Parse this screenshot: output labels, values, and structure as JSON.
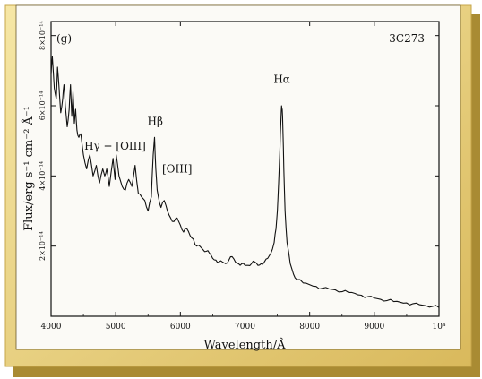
{
  "chart_data": {
    "type": "line",
    "panel_label": "(g)",
    "object_label": "3C273",
    "xlabel": "Wavelength/Å",
    "ylabel": "Flux/erg s⁻¹ cm⁻² Å⁻¹",
    "x_unit": "Å",
    "xlim": [
      4000,
      10000
    ],
    "ylim": [
      0,
      8.4e-14
    ],
    "x_ticks": [
      4000,
      5000,
      6000,
      7000,
      8000,
      9000,
      10000
    ],
    "x_tick_labels": [
      "4000",
      "5000",
      "6000",
      "7000",
      "8000",
      "9000",
      "10⁴"
    ],
    "y_ticks": [
      2e-14,
      4e-14,
      6e-14,
      8e-14
    ],
    "y_tick_labels": [
      "2×10⁻¹⁴",
      "4×10⁻¹⁴",
      "6×10⁻¹⁴",
      "8×10⁻¹⁴"
    ],
    "grid": false,
    "annotations": [
      {
        "text": "Hγ + [OIII]",
        "x": 4990,
        "y": 4.75e-14
      },
      {
        "text": "Hβ",
        "x": 5610,
        "y": 5.45e-14
      },
      {
        "text": "[OIII]",
        "x": 5950,
        "y": 4.1e-14
      },
      {
        "text": "Hα",
        "x": 7570,
        "y": 6.65e-14
      }
    ],
    "series": [
      {
        "x": [
          4000,
          4020,
          4050,
          4080,
          4100,
          4120,
          4150,
          4180,
          4200,
          4220,
          4250,
          4280,
          4300,
          4320,
          4340,
          4360,
          4380,
          4400,
          4430,
          4460,
          4500,
          4550,
          4600,
          4650,
          4700,
          4750,
          4800,
          4830,
          4861,
          4900,
          4959,
          4990,
          5007,
          5050,
          5100,
          5150,
          5200,
          5250,
          5300,
          5350,
          5400,
          5450,
          5500,
          5550,
          5580,
          5600,
          5620,
          5640,
          5660,
          5700,
          5750,
          5800,
          5850,
          5900,
          5950,
          6000,
          6050,
          6100,
          6150,
          6200,
          6250,
          6300,
          6350,
          6400,
          6450,
          6500,
          6550,
          6600,
          6650,
          6700,
          6750,
          6800,
          6850,
          6900,
          6950,
          7000,
          7050,
          7100,
          7150,
          7200,
          7250,
          7300,
          7350,
          7400,
          7450,
          7480,
          7500,
          7520,
          7540,
          7555,
          7565,
          7575,
          7585,
          7600,
          7620,
          7650,
          7700,
          7750,
          7800,
          7900,
          8000,
          8100,
          8200,
          8300,
          8400,
          8500,
          8600,
          8700,
          8800,
          8900,
          9000,
          9100,
          9200,
          9300,
          9400,
          9500,
          9600,
          9700,
          9800,
          9900,
          10000
        ],
        "y": [
          6.9e-14,
          7.4e-14,
          6.5e-14,
          6.2e-14,
          7.1e-14,
          6.6e-14,
          5.8e-14,
          6.2e-14,
          6.6e-14,
          6e-14,
          5.4e-14,
          5.9e-14,
          6.6e-14,
          5.7e-14,
          6.4e-14,
          5.5e-14,
          5.9e-14,
          5.3e-14,
          5.1e-14,
          5.2e-14,
          4.6e-14,
          4.2e-14,
          4.6e-14,
          4e-14,
          4.3e-14,
          3.8e-14,
          4.2e-14,
          4e-14,
          4.2e-14,
          3.7e-14,
          4.5e-14,
          3.9e-14,
          4.6e-14,
          4e-14,
          3.7e-14,
          3.6e-14,
          3.9e-14,
          3.7e-14,
          4.3e-14,
          3.5e-14,
          3.4e-14,
          3.3e-14,
          3e-14,
          3.4e-14,
          4.6e-14,
          5.1e-14,
          4.2e-14,
          3.6e-14,
          3.4e-14,
          3.1e-14,
          3.3e-14,
          3e-14,
          2.8e-14,
          2.7e-14,
          2.8e-14,
          2.6e-14,
          2.4e-14,
          2.5e-14,
          2.3e-14,
          2.2e-14,
          2e-14,
          2e-14,
          1.9e-14,
          1.85e-14,
          1.8e-14,
          1.65e-14,
          1.6e-14,
          1.55e-14,
          1.55e-14,
          1.5e-14,
          1.6e-14,
          1.7e-14,
          1.55e-14,
          1.5e-14,
          1.5e-14,
          1.45e-14,
          1.45e-14,
          1.5e-14,
          1.55e-14,
          1.45e-14,
          1.5e-14,
          1.55e-14,
          1.65e-14,
          1.8e-14,
          2.1e-14,
          2.5e-14,
          3e-14,
          3.8e-14,
          4.8e-14,
          5.6e-14,
          6e-14,
          5.9e-14,
          5.4e-14,
          4.2e-14,
          3e-14,
          2.1e-14,
          1.5e-14,
          1.2e-14,
          1.05e-14,
          9.5e-15,
          9e-15,
          8.5e-15,
          8e-15,
          7.8e-15,
          7.5e-15,
          7e-15,
          6.8e-15,
          6.5e-15,
          6e-15,
          5.6e-15,
          5.2e-15,
          4.8e-15,
          4.5e-15,
          4.2e-15,
          4e-15,
          3.8e-15,
          3.6e-15,
          3.3e-15,
          3e-15,
          2.8e-15,
          2.5e-15
        ]
      }
    ]
  }
}
